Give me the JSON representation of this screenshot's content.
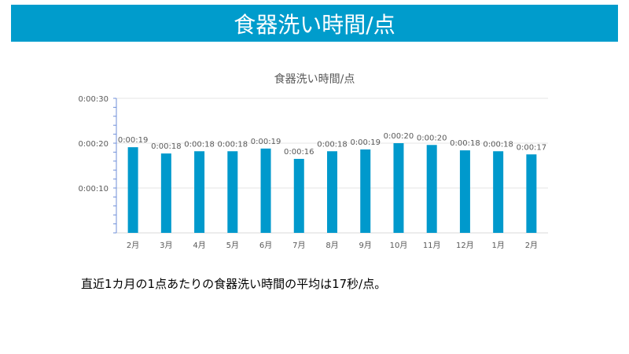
{
  "slide": {
    "title": "食器洗い時間/点",
    "note": "直近1カ月の1点あたりの食器洗い時間の平均は17秒/点。"
  },
  "colors": {
    "banner": "#009ccc",
    "bar": "#0099cc"
  },
  "chart_data": {
    "type": "bar",
    "title": "食器洗い時間/点",
    "categories": [
      "2月",
      "3月",
      "4月",
      "5月",
      "6月",
      "7月",
      "8月",
      "9月",
      "10月",
      "11月",
      "12月",
      "1月",
      "2月"
    ],
    "values": [
      19.1,
      17.7,
      18.2,
      18.2,
      18.8,
      16.5,
      18.2,
      18.6,
      20.0,
      19.6,
      18.4,
      18.2,
      17.5
    ],
    "data_labels": [
      "0:00:19",
      "0:00:18",
      "0:00:18",
      "0:00:18",
      "0:00:19",
      "0:00:16",
      "0:00:18",
      "0:00:19",
      "0:00:20",
      "0:00:20",
      "0:00:18",
      "0:00:18",
      "0:00:17"
    ],
    "ylim": [
      0,
      30
    ],
    "yticks": [
      {
        "value": 10,
        "label": "0:00:10"
      },
      {
        "value": 20,
        "label": "0:00:20"
      },
      {
        "value": 30,
        "label": "0:00:30"
      }
    ],
    "grid": true,
    "xlabel": "",
    "ylabel": ""
  }
}
